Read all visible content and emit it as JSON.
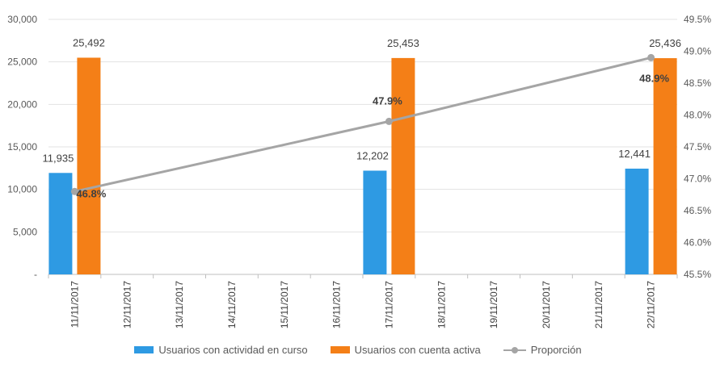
{
  "chart_data": {
    "type": "bar",
    "categories": [
      "11/11/2017",
      "12/11/2017",
      "13/11/2017",
      "14/11/2017",
      "15/11/2017",
      "16/11/2017",
      "17/11/2017",
      "18/11/2017",
      "19/11/2017",
      "20/11/2017",
      "21/11/2017",
      "22/11/2017"
    ],
    "series": [
      {
        "name": "Usuarios con actividad en curso",
        "type": "bar",
        "axis": "left",
        "color": "#2e9ae3",
        "values": [
          11935,
          null,
          null,
          null,
          null,
          null,
          12202,
          null,
          null,
          null,
          null,
          12441
        ],
        "labels": [
          "11,935",
          null,
          null,
          null,
          null,
          null,
          "12,202",
          null,
          null,
          null,
          null,
          "12,441"
        ]
      },
      {
        "name": "Usuarios con cuenta activa",
        "type": "bar",
        "axis": "left",
        "color": "#f47f17",
        "values": [
          25492,
          null,
          null,
          null,
          null,
          null,
          25453,
          null,
          null,
          null,
          null,
          25436
        ],
        "labels": [
          "25,492",
          null,
          null,
          null,
          null,
          null,
          "25,453",
          null,
          null,
          null,
          null,
          "25,436"
        ]
      },
      {
        "name": "Proporción",
        "type": "line",
        "axis": "right",
        "color": "#a5a5a5",
        "values": [
          46.8,
          null,
          null,
          null,
          null,
          null,
          47.9,
          null,
          null,
          null,
          null,
          48.9
        ],
        "labels": [
          "46.8%",
          null,
          null,
          null,
          null,
          null,
          "47.9%",
          null,
          null,
          null,
          null,
          "48.9%"
        ]
      }
    ],
    "yleft": {
      "min": 0,
      "max": 30000,
      "ticks": [
        0,
        5000,
        10000,
        15000,
        20000,
        25000,
        30000
      ],
      "tick_labels": [
        "-",
        "5,000",
        "10,000",
        "15,000",
        "20,000",
        "25,000",
        "30,000"
      ]
    },
    "yright": {
      "min": 45.5,
      "max": 49.5,
      "ticks": [
        45.5,
        46.0,
        46.5,
        47.0,
        47.5,
        48.0,
        48.5,
        49.0,
        49.5
      ],
      "tick_labels": [
        "45.5%",
        "46.0%",
        "46.5%",
        "47.0%",
        "47.5%",
        "48.0%",
        "48.5%",
        "49.0%",
        "49.5%"
      ]
    },
    "grid": true,
    "legend_position": "bottom"
  },
  "legend": {
    "bar1": "Usuarios con actividad en curso",
    "bar2": "Usuarios con cuenta activa",
    "line": "Proporción",
    "colors": {
      "bar1": "#2e9ae3",
      "bar2": "#f47f17",
      "line": "#a5a5a5"
    }
  }
}
